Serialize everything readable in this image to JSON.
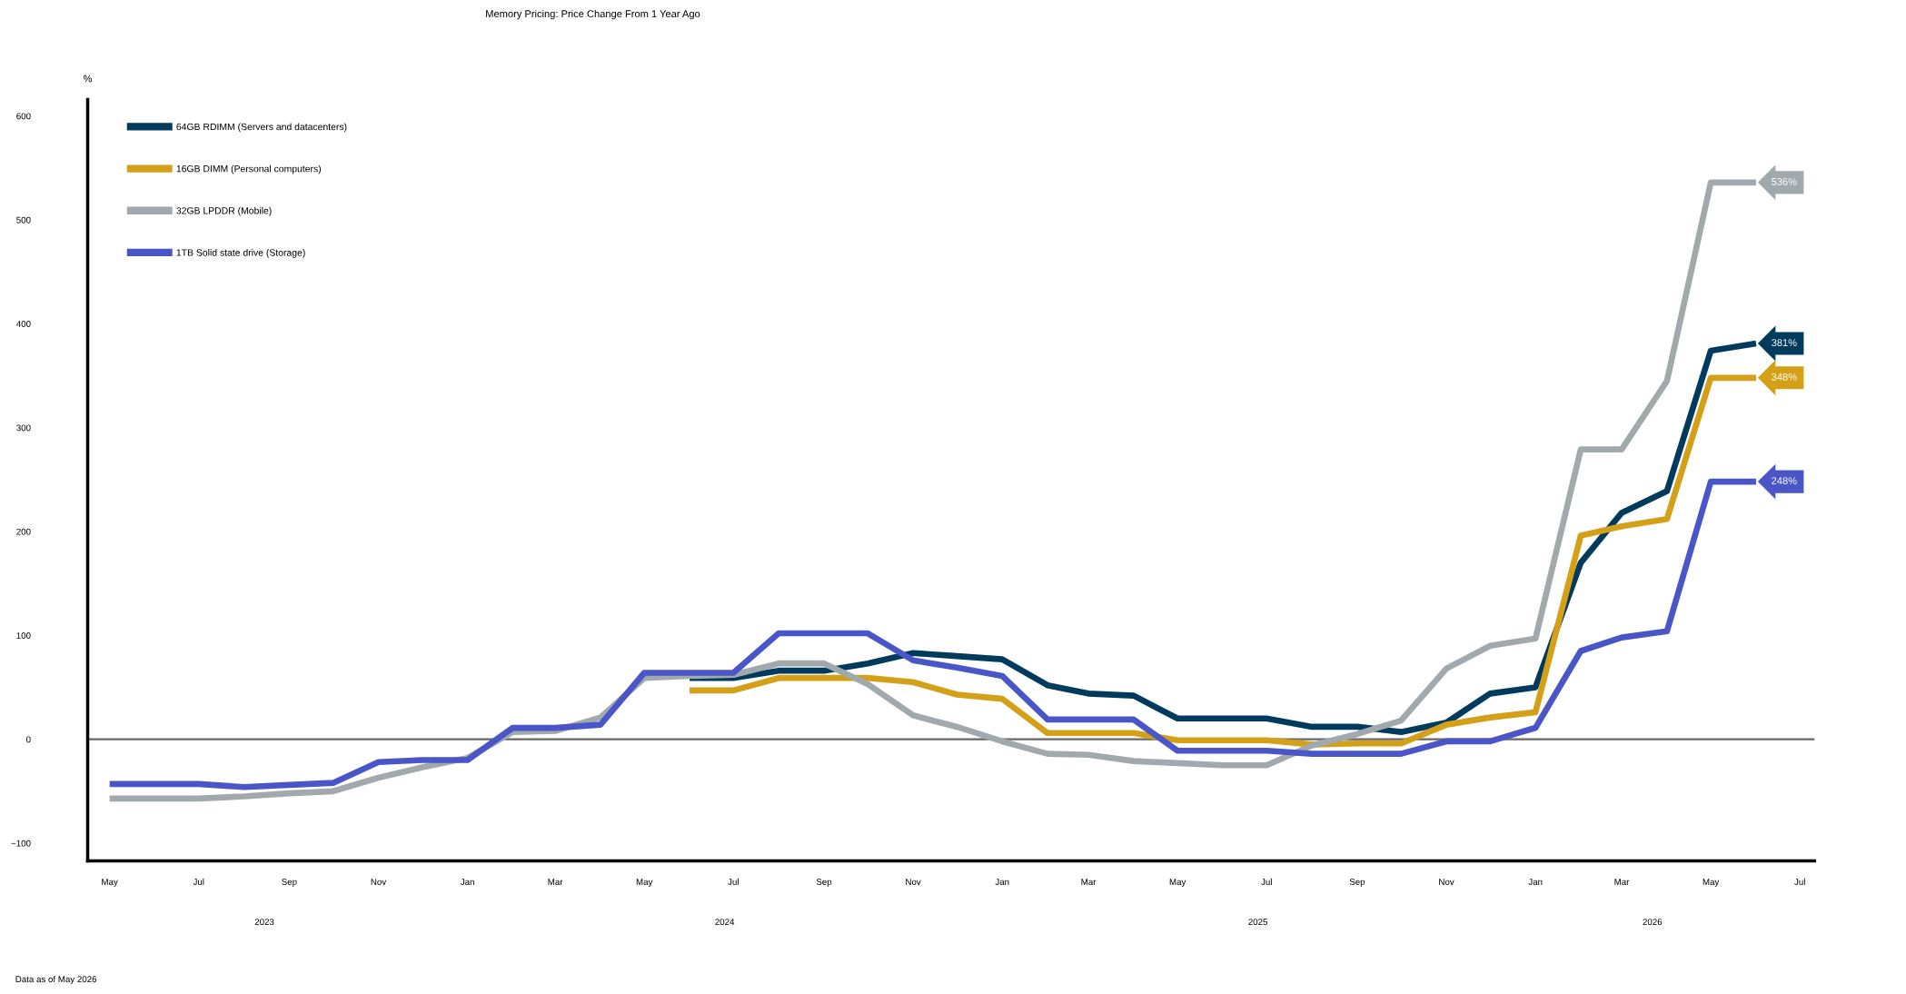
{
  "chart_data": {
    "type": "line",
    "title": "Memory Pricing: Price Change From 1 Year Ago",
    "ylabel": "%",
    "x": [
      "2023-05",
      "2023-06",
      "2023-07",
      "2023-08",
      "2023-09",
      "2023-10",
      "2023-11",
      "2023-12",
      "2024-01",
      "2024-02",
      "2024-03",
      "2024-04",
      "2024-05",
      "2024-06",
      "2024-07",
      "2024-08",
      "2024-09",
      "2024-10",
      "2024-11",
      "2024-12",
      "2025-01",
      "2025-02",
      "2025-03",
      "2025-04",
      "2025-05",
      "2025-06",
      "2025-07",
      "2025-08",
      "2025-09",
      "2025-10",
      "2025-11",
      "2025-12",
      "2026-01",
      "2026-02",
      "2026-03",
      "2026-04",
      "2026-05",
      "2026-06"
    ],
    "series": [
      {
        "name": "64GB RDIMM (Servers and datacenters)",
        "color": "#003a5d",
        "values": [
          null,
          null,
          null,
          null,
          null,
          null,
          null,
          null,
          null,
          null,
          null,
          null,
          null,
          59,
          59,
          66,
          66,
          73,
          83,
          80,
          77,
          52,
          44,
          42,
          20,
          20,
          20,
          12,
          12,
          7,
          16,
          44,
          50,
          170,
          218,
          239,
          374,
          381
        ],
        "value_labels": [
          null,
          null,
          null,
          null,
          null,
          null,
          null,
          null,
          null,
          null,
          null,
          null,
          null,
          null,
          null,
          null,
          null,
          null,
          null,
          null,
          null,
          null,
          null,
          null,
          null,
          null,
          null,
          null,
          null,
          null,
          null,
          null,
          null,
          null,
          null,
          null,
          null,
          "381%"
        ]
      },
      {
        "name": "16GB DIMM (Personal computers)",
        "color": "#d4a017",
        "values": [
          null,
          null,
          null,
          null,
          null,
          null,
          null,
          null,
          null,
          null,
          null,
          null,
          null,
          47,
          47,
          59,
          59,
          59,
          55,
          43,
          39,
          6,
          6,
          6,
          -1,
          -1,
          -1,
          -5,
          -4,
          -4,
          14,
          21,
          26,
          196,
          205,
          212,
          348,
          348
        ],
        "value_labels": [
          null,
          null,
          null,
          null,
          null,
          null,
          null,
          null,
          null,
          null,
          null,
          null,
          null,
          null,
          null,
          null,
          null,
          null,
          null,
          null,
          null,
          null,
          null,
          null,
          null,
          null,
          null,
          null,
          null,
          null,
          null,
          null,
          null,
          null,
          null,
          null,
          null,
          "348%"
        ]
      },
      {
        "name": "32GB LPDDR (Mobile)",
        "color": "#a2a9ad",
        "values": [
          -57,
          -57,
          -57,
          -55,
          -52,
          -50,
          -37,
          -27,
          -18,
          7,
          8,
          21,
          59,
          61,
          62,
          73,
          73,
          53,
          23,
          12,
          -2,
          -14,
          -15,
          -21,
          -23,
          -25,
          -25,
          -6,
          5,
          18,
          68,
          90,
          97,
          279,
          279,
          345,
          536,
          536
        ],
        "value_labels": [
          null,
          null,
          null,
          null,
          null,
          null,
          null,
          null,
          null,
          null,
          null,
          null,
          null,
          null,
          null,
          null,
          null,
          null,
          null,
          null,
          null,
          null,
          null,
          null,
          null,
          null,
          null,
          null,
          null,
          null,
          null,
          null,
          null,
          null,
          null,
          null,
          null,
          "536%"
        ]
      },
      {
        "name": "1TB Solid state drive (Storage)",
        "color": "#4a56c8",
        "values": [
          -43,
          -43,
          -43,
          -46,
          -44,
          -42,
          -22,
          -20,
          -20,
          11,
          11,
          14,
          64,
          64,
          64,
          102,
          102,
          102,
          76,
          69,
          61,
          19,
          19,
          19,
          -11,
          -11,
          -11,
          -14,
          -14,
          -14,
          -2,
          -2,
          11,
          85,
          98,
          104,
          248,
          248
        ],
        "value_labels": [
          null,
          null,
          null,
          null,
          null,
          null,
          null,
          null,
          null,
          null,
          null,
          null,
          null,
          null,
          null,
          null,
          null,
          null,
          null,
          null,
          null,
          null,
          null,
          null,
          null,
          null,
          null,
          null,
          null,
          null,
          null,
          null,
          null,
          null,
          null,
          null,
          null,
          "248%"
        ]
      }
    ],
    "xlim": [
      "2023-04-16",
      "2026-07-11"
    ],
    "xticks": [
      {
        "value": "2023-05",
        "label": "May"
      },
      {
        "value": "2023-07",
        "label": "Jul"
      },
      {
        "value": "2023-09",
        "label": "Sep"
      },
      {
        "value": "2023-11",
        "label": "Nov"
      },
      {
        "value": "2024-01",
        "label": "Jan"
      },
      {
        "value": "2024-03",
        "label": "Mar"
      },
      {
        "value": "2024-05",
        "label": "May"
      },
      {
        "value": "2024-07",
        "label": "Jul"
      },
      {
        "value": "2024-09",
        "label": "Sep"
      },
      {
        "value": "2024-11",
        "label": "Nov"
      },
      {
        "value": "2025-01",
        "label": "Jan"
      },
      {
        "value": "2025-03",
        "label": "Mar"
      },
      {
        "value": "2025-05",
        "label": "May"
      },
      {
        "value": "2025-07",
        "label": "Jul"
      },
      {
        "value": "2025-09",
        "label": "Sep"
      },
      {
        "value": "2025-11",
        "label": "Nov"
      },
      {
        "value": "2026-01",
        "label": "Jan"
      },
      {
        "value": "2026-03",
        "label": "Mar"
      },
      {
        "value": "2026-05",
        "label": "May"
      },
      {
        "value": "2026-07",
        "label": "Jul"
      }
    ],
    "ylim": [
      -117,
      616
    ],
    "yticks": [
      {
        "value": -100,
        "label": "−100"
      },
      0,
      100,
      200,
      300,
      400,
      500,
      600
    ],
    "ref_lines": [
      {
        "axis": "y",
        "value": 0,
        "color": "#666666"
      }
    ],
    "x2lim": [
      "2023-04-16",
      "2026-07-11"
    ],
    "x2ticks": [
      {
        "value": "2023-08-15",
        "label": "2023"
      },
      {
        "value": "2024-06-25",
        "label": "2024"
      },
      {
        "value": "2025-06-25",
        "label": "2025"
      },
      {
        "value": "2026-03-22",
        "label": "2026"
      }
    ],
    "annotations": [
      "Data as of May 2026"
    ],
    "legend": "top left",
    "grid": false,
    "marker": "none",
    "line_style": "solid"
  }
}
